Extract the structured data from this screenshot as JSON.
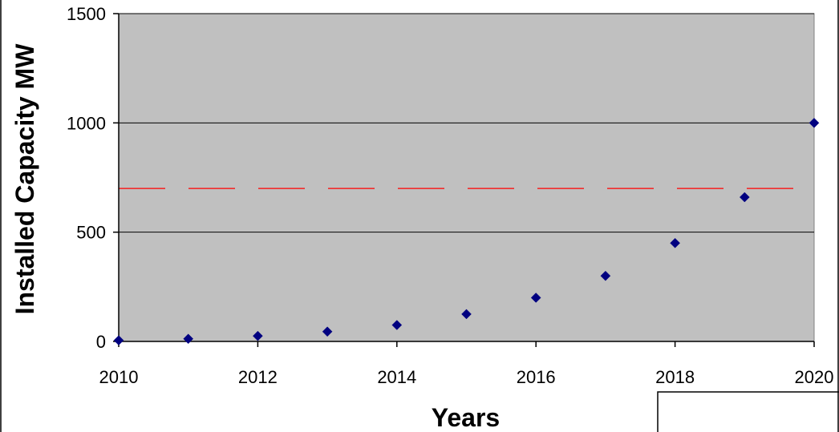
{
  "chart_data": {
    "type": "scatter",
    "xlabel": "Years",
    "ylabel": "Installed Capacity MW",
    "xlim": [
      2010,
      2020
    ],
    "ylim": [
      0,
      1500
    ],
    "x_ticks": [
      2010,
      2012,
      2014,
      2016,
      2018,
      2020
    ],
    "x_tick_labels": [
      "2010",
      "2012",
      "2014",
      "2016",
      "2018",
      "2020"
    ],
    "y_ticks": [
      0,
      500,
      1000,
      1500
    ],
    "y_tick_labels": [
      "0",
      "500",
      "1000",
      "1500"
    ],
    "grid": "horizontal",
    "legend": "none",
    "series": [
      {
        "x": [
          2010,
          2011,
          2012,
          2013,
          2014,
          2015,
          2016,
          2017,
          2018,
          2019,
          2020
        ],
        "y": [
          5,
          12,
          25,
          45,
          75,
          125,
          200,
          300,
          450,
          660,
          1000
        ],
        "color": "#000080",
        "marker": "diamond"
      }
    ],
    "reference_lines": [
      {
        "axis": "y",
        "value": 700,
        "color": "#ff0000",
        "style": "dashed"
      }
    ],
    "plot_background": "#c0c0c0"
  }
}
